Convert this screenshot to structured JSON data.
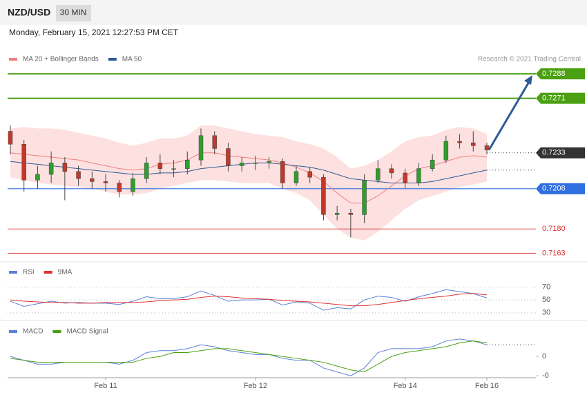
{
  "chart_data": {
    "type": "candlestick",
    "title": "NZD/USD",
    "timeframe": "30 MIN",
    "subtitle": "Monday, February 15, 2021 12:27:53 PM CET",
    "attribution": "Research © 2021 Trading Central",
    "categories": [
      null,
      null,
      null,
      null,
      null,
      null,
      null,
      "Feb 11",
      null,
      null,
      null,
      null,
      null,
      null,
      null,
      null,
      null,
      null,
      "Feb 12",
      null,
      null,
      null,
      null,
      null,
      null,
      null,
      null,
      null,
      null,
      "Feb 14",
      null,
      null,
      null,
      null,
      null,
      "Feb 16"
    ],
    "ohlc": [
      [
        0.7248,
        0.7252,
        0.7232,
        0.7239
      ],
      [
        0.7239,
        0.7242,
        0.7206,
        0.7214
      ],
      [
        0.7214,
        0.7224,
        0.7208,
        0.7218
      ],
      [
        0.7218,
        0.7234,
        0.7212,
        0.7226
      ],
      [
        0.7226,
        0.723,
        0.72,
        0.722
      ],
      [
        0.722,
        0.7224,
        0.721,
        0.7215
      ],
      [
        0.7215,
        0.722,
        0.7208,
        0.7213
      ],
      [
        0.7213,
        0.7218,
        0.7206,
        0.7212
      ],
      [
        0.7212,
        0.7214,
        0.7202,
        0.7206
      ],
      [
        0.7206,
        0.7219,
        0.7203,
        0.7215
      ],
      [
        0.7215,
        0.723,
        0.7212,
        0.7226
      ],
      [
        0.7226,
        0.7232,
        0.7218,
        0.7222
      ],
      [
        0.7222,
        0.7228,
        0.7216,
        0.7222
      ],
      [
        0.7222,
        0.7234,
        0.7218,
        0.7228
      ],
      [
        0.7228,
        0.725,
        0.7224,
        0.7245
      ],
      [
        0.7245,
        0.7248,
        0.7232,
        0.7236
      ],
      [
        0.7236,
        0.724,
        0.722,
        0.7224
      ],
      [
        0.7224,
        0.723,
        0.722,
        0.7226
      ],
      [
        0.7226,
        0.7231,
        0.7221,
        0.7226
      ],
      [
        0.7226,
        0.723,
        0.7222,
        0.7227
      ],
      [
        0.7227,
        0.7229,
        0.7208,
        0.7212
      ],
      [
        0.7212,
        0.7224,
        0.721,
        0.722
      ],
      [
        0.722,
        0.7223,
        0.7212,
        0.7216
      ],
      [
        0.7216,
        0.7218,
        0.7186,
        0.719
      ],
      [
        0.719,
        0.7196,
        0.7186,
        0.7191
      ],
      [
        0.7191,
        0.7194,
        0.7174,
        0.719
      ],
      [
        0.719,
        0.7218,
        0.7184,
        0.7214
      ],
      [
        0.7214,
        0.7228,
        0.7212,
        0.7222
      ],
      [
        0.7222,
        0.7225,
        0.7215,
        0.7219
      ],
      [
        0.7219,
        0.7222,
        0.7208,
        0.7212
      ],
      [
        0.7212,
        0.7226,
        0.721,
        0.7222
      ],
      [
        0.7222,
        0.7232,
        0.722,
        0.7228
      ],
      [
        0.7228,
        0.7245,
        0.7226,
        0.7241
      ],
      [
        0.7241,
        0.7246,
        0.7236,
        0.724
      ],
      [
        0.724,
        0.7248,
        0.7234,
        0.7238
      ],
      [
        0.7238,
        0.724,
        0.7232,
        0.7235
      ]
    ],
    "up_color": "#2f9e2f",
    "down_color": "#c0392b",
    "ylim": [
      0.7158,
      0.7302
    ],
    "bands": {
      "color": "#fde0e0",
      "upper": [
        0.725,
        0.7251,
        0.725,
        0.725,
        0.7249,
        0.7247,
        0.7245,
        0.7243,
        0.724,
        0.7238,
        0.724,
        0.7243,
        0.7243,
        0.7245,
        0.7252,
        0.7252,
        0.725,
        0.7248,
        0.7246,
        0.7245,
        0.7244,
        0.7241,
        0.7239,
        0.7236,
        0.723,
        0.7222,
        0.7224,
        0.7228,
        0.7234,
        0.7241,
        0.7244,
        0.7245,
        0.7249,
        0.7251,
        0.725,
        0.7246
      ],
      "lower": [
        0.7216,
        0.7214,
        0.7212,
        0.7211,
        0.721,
        0.7209,
        0.7208,
        0.7206,
        0.7204,
        0.7204,
        0.7205,
        0.7208,
        0.721,
        0.7212,
        0.7214,
        0.7214,
        0.7213,
        0.7212,
        0.7212,
        0.7212,
        0.7208,
        0.7205,
        0.72,
        0.719,
        0.718,
        0.7174,
        0.7172,
        0.7178,
        0.7186,
        0.7194,
        0.72,
        0.7203,
        0.7206,
        0.7209,
        0.7211,
        0.7213
      ]
    },
    "series": [
      {
        "name": "MA 20 + Bollinger Bands",
        "color": "#f08080",
        "values": [
          0.7233,
          0.7232,
          0.7231,
          0.723,
          0.7229,
          0.7228,
          0.7226,
          0.7224,
          0.7222,
          0.7221,
          0.7222,
          0.7225,
          0.7226,
          0.7228,
          0.7233,
          0.7233,
          0.7231,
          0.723,
          0.7229,
          0.7228,
          0.7226,
          0.7223,
          0.7219,
          0.7213,
          0.7205,
          0.7198,
          0.7198,
          0.7203,
          0.721,
          0.7217,
          0.7222,
          0.7224,
          0.7227,
          0.723,
          0.7231,
          0.723
        ]
      },
      {
        "name": "MA 50",
        "color": "#2e5a94",
        "values": [
          0.7227,
          0.7226,
          0.7225,
          0.7224,
          0.7223,
          0.7222,
          0.7221,
          0.722,
          0.7219,
          0.7218,
          0.7218,
          0.7219,
          0.7219,
          0.722,
          0.7222,
          0.7223,
          0.7224,
          0.7225,
          0.7226,
          0.7226,
          0.7225,
          0.7224,
          0.7223,
          0.7221,
          0.7218,
          0.7215,
          0.7214,
          0.7213,
          0.7212,
          0.7212,
          0.7212,
          0.7213,
          0.7215,
          0.7217,
          0.7219,
          0.7221
        ]
      }
    ],
    "levels": [
      {
        "value": 0.7288,
        "label": "0.7288",
        "color": "#4aa010",
        "boxed": true
      },
      {
        "value": 0.7271,
        "label": "0.7271",
        "color": "#4aa010",
        "boxed": true
      },
      {
        "value": 0.7233,
        "label": "0.7233",
        "color": "#333333",
        "boxed": true
      },
      {
        "value": 0.7208,
        "label": "0.7208",
        "color": "#2f6fe0",
        "boxed": true
      },
      {
        "value": 0.718,
        "label": "0.7180",
        "color": "#e03030",
        "boxed": false
      },
      {
        "value": 0.7163,
        "label": "0.7163",
        "color": "#e03030",
        "boxed": false
      }
    ],
    "arrow_color": "#2e5a94",
    "rsi": {
      "ylim": [
        18,
        106
      ],
      "yticks": [
        70,
        50,
        30
      ],
      "series": [
        {
          "name": "RSI",
          "color": "#5b7fd6",
          "values": [
            48,
            40,
            44,
            48,
            45,
            46,
            45,
            45,
            43,
            48,
            55,
            52,
            52,
            55,
            64,
            57,
            48,
            50,
            50,
            51,
            42,
            47,
            45,
            34,
            38,
            36,
            50,
            56,
            54,
            48,
            55,
            60,
            66,
            63,
            60,
            53
          ]
        },
        {
          "name": "9MA",
          "color": "#e03030",
          "values": [
            50,
            48,
            47,
            46,
            46,
            45,
            45,
            46,
            46,
            46,
            47,
            49,
            50,
            51,
            54,
            56,
            55,
            53,
            52,
            51,
            49,
            48,
            47,
            45,
            43,
            41,
            41,
            43,
            46,
            49,
            52,
            54,
            56,
            59,
            60,
            58
          ]
        }
      ]
    },
    "macd": {
      "ylim": [
        -0.0011,
        0.00168
      ],
      "yticks": [
        {
          "value": 0,
          "label": "0"
        },
        {
          "value": -0.001,
          "label": "-0"
        }
      ],
      "series": [
        {
          "name": "MACD",
          "color": "#5b7fd6",
          "values": [
            0,
            -0.0002,
            -0.0004,
            -0.0004,
            -0.0003,
            -0.0003,
            -0.0003,
            -0.0003,
            -0.0004,
            -0.0002,
            0.0002,
            0.0003,
            0.0003,
            0.0004,
            0.0006,
            0.0005,
            0.0003,
            0.0002,
            0.0001,
            0.0001,
            -0.0001,
            -0.0002,
            -0.0002,
            -0.0006,
            -0.0008,
            -0.001,
            -0.0006,
            0.0002,
            0.0004,
            0.0004,
            0.0004,
            0.0005,
            0.0008,
            0.0009,
            0.0008,
            0.0006
          ]
        },
        {
          "name": "MACD Signal",
          "color": "#4aa010",
          "values": [
            -0.0001,
            -0.0002,
            -0.0003,
            -0.0003,
            -0.0003,
            -0.0003,
            -0.0003,
            -0.0003,
            -0.0003,
            -0.0003,
            -0.0001,
            0,
            0.0002,
            0.0002,
            0.0003,
            0.0004,
            0.0004,
            0.0003,
            0.0002,
            0.0001,
            0,
            -0.0001,
            -0.0002,
            -0.0003,
            -0.0005,
            -0.0007,
            -0.0008,
            -0.0004,
            0,
            0.0002,
            0.0003,
            0.0004,
            0.0005,
            0.0007,
            0.0008,
            0.0007
          ]
        }
      ]
    }
  }
}
